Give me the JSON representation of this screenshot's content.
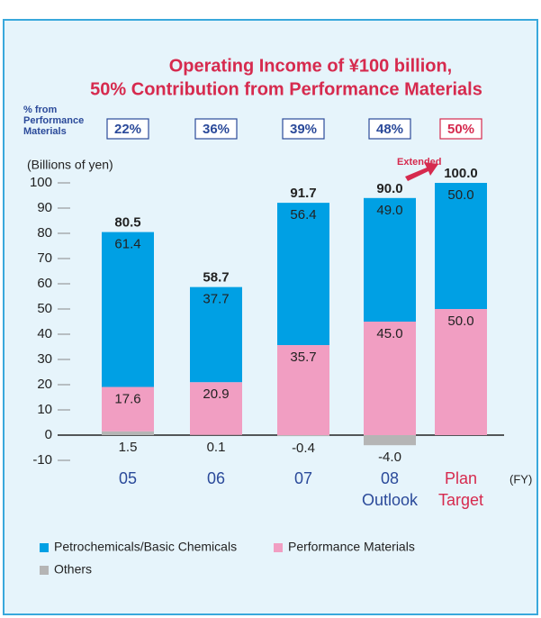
{
  "chart_data": {
    "type": "stacked_bar",
    "title": [
      "Operating Income of ¥100 billion,",
      "50% Contribution from Performance Materials"
    ],
    "y_label": "(Billions of yen)",
    "x_unit": "(FY)",
    "categories": [
      "05",
      "06",
      "07",
      "08",
      "Plan"
    ],
    "category_notes": [
      null,
      null,
      null,
      "Outlook",
      "Target"
    ],
    "series": [
      {
        "name": "Petrochemicals/Basic Chemicals",
        "color": "#00a0e4",
        "values": [
          61.4,
          37.7,
          56.4,
          49.0,
          50.0
        ],
        "value_labels": [
          "61.4",
          "37.7",
          "56.4",
          "49.0",
          "50.0"
        ]
      },
      {
        "name": "Performance Materials",
        "color": "#f19ec2",
        "values": [
          17.6,
          20.9,
          35.7,
          45.0,
          50.0
        ],
        "value_labels": [
          "17.6",
          "20.9",
          "35.7",
          "45.0",
          "50.0"
        ]
      },
      {
        "name": "Others",
        "color": "#b5b5b5",
        "values": [
          1.5,
          0.1,
          -0.4,
          -4.0,
          null
        ],
        "value_labels": [
          "1.5",
          "0.1",
          "-0.4",
          "-4.0",
          null
        ]
      }
    ],
    "totals": {
      "values": [
        80.5,
        58.7,
        91.7,
        90.0,
        100.0
      ],
      "value_labels": [
        "80.5",
        "58.7",
        "91.7",
        "90.0",
        "100.0"
      ]
    },
    "shares": {
      "label": [
        "% from",
        "Performance",
        "Materials"
      ],
      "values": [
        22,
        36,
        39,
        48,
        50
      ],
      "value_labels": [
        "22%",
        "36%",
        "39%",
        "48%",
        "50%"
      ]
    },
    "annotation": "Extended",
    "ylim": [
      -10,
      100
    ],
    "yticks": [
      -10,
      0,
      10,
      20,
      30,
      40,
      50,
      60,
      70,
      80,
      90,
      100
    ],
    "grid": false
  }
}
